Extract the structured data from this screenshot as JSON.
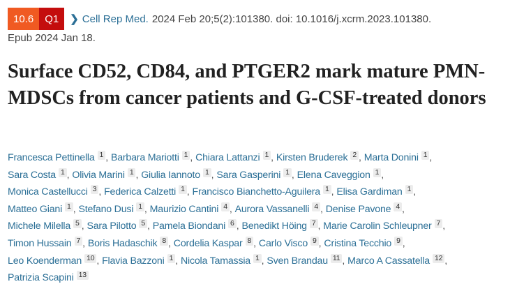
{
  "badges": {
    "impact_factor": "10.6",
    "quartile": "Q1",
    "impact_color": "#f05a22",
    "quartile_color": "#c40d0d"
  },
  "citation": {
    "icon": "chevron-right-icon",
    "journal": "Cell Rep Med.",
    "details": "2024 Feb 20;5(2):101380. doi: 10.1016/j.xcrm.2023.101380.",
    "epub": "Epub 2024 Jan 18."
  },
  "title": "Surface CD52, CD84, and PTGER2 mark mature PMN-MDSCs from cancer patients and G-CSF-treated donors",
  "link_color": "#2b6f96",
  "authors": [
    {
      "name": "Francesca Pettinella",
      "aff": "1"
    },
    {
      "name": "Barbara Mariotti",
      "aff": "1"
    },
    {
      "name": "Chiara Lattanzi",
      "aff": "1"
    },
    {
      "name": "Kirsten Bruderek",
      "aff": "2"
    },
    {
      "name": "Marta Donini",
      "aff": "1"
    },
    {
      "name": "Sara Costa",
      "aff": "1"
    },
    {
      "name": "Olivia Marini",
      "aff": "1"
    },
    {
      "name": "Giulia Iannoto",
      "aff": "1"
    },
    {
      "name": "Sara Gasperini",
      "aff": "1"
    },
    {
      "name": "Elena Caveggion",
      "aff": "1"
    },
    {
      "name": "Monica Castellucci",
      "aff": "3"
    },
    {
      "name": "Federica Calzetti",
      "aff": "1"
    },
    {
      "name": "Francisco Bianchetto-Aguilera",
      "aff": "1"
    },
    {
      "name": "Elisa Gardiman",
      "aff": "1"
    },
    {
      "name": "Matteo Giani",
      "aff": "1"
    },
    {
      "name": "Stefano Dusi",
      "aff": "1"
    },
    {
      "name": "Maurizio Cantini",
      "aff": "4"
    },
    {
      "name": "Aurora Vassanelli",
      "aff": "4"
    },
    {
      "name": "Denise Pavone",
      "aff": "4"
    },
    {
      "name": "Michele Milella",
      "aff": "5"
    },
    {
      "name": "Sara Pilotto",
      "aff": "5"
    },
    {
      "name": "Pamela Biondani",
      "aff": "6"
    },
    {
      "name": "Benedikt Höing",
      "aff": "7"
    },
    {
      "name": "Marie Carolin Schleupner",
      "aff": "7"
    },
    {
      "name": "Timon Hussain",
      "aff": "7"
    },
    {
      "name": "Boris Hadaschik",
      "aff": "8"
    },
    {
      "name": "Cordelia Kaspar",
      "aff": "8"
    },
    {
      "name": "Carlo Visco",
      "aff": "9"
    },
    {
      "name": "Cristina Tecchio",
      "aff": "9"
    },
    {
      "name": "Leo Koenderman",
      "aff": "10"
    },
    {
      "name": "Flavia Bazzoni",
      "aff": "1"
    },
    {
      "name": "Nicola Tamassia",
      "aff": "1"
    },
    {
      "name": "Sven Brandau",
      "aff": "11"
    },
    {
      "name": "Marco A Cassatella",
      "aff": "12"
    },
    {
      "name": "Patrizia Scapini",
      "aff": "13"
    }
  ]
}
